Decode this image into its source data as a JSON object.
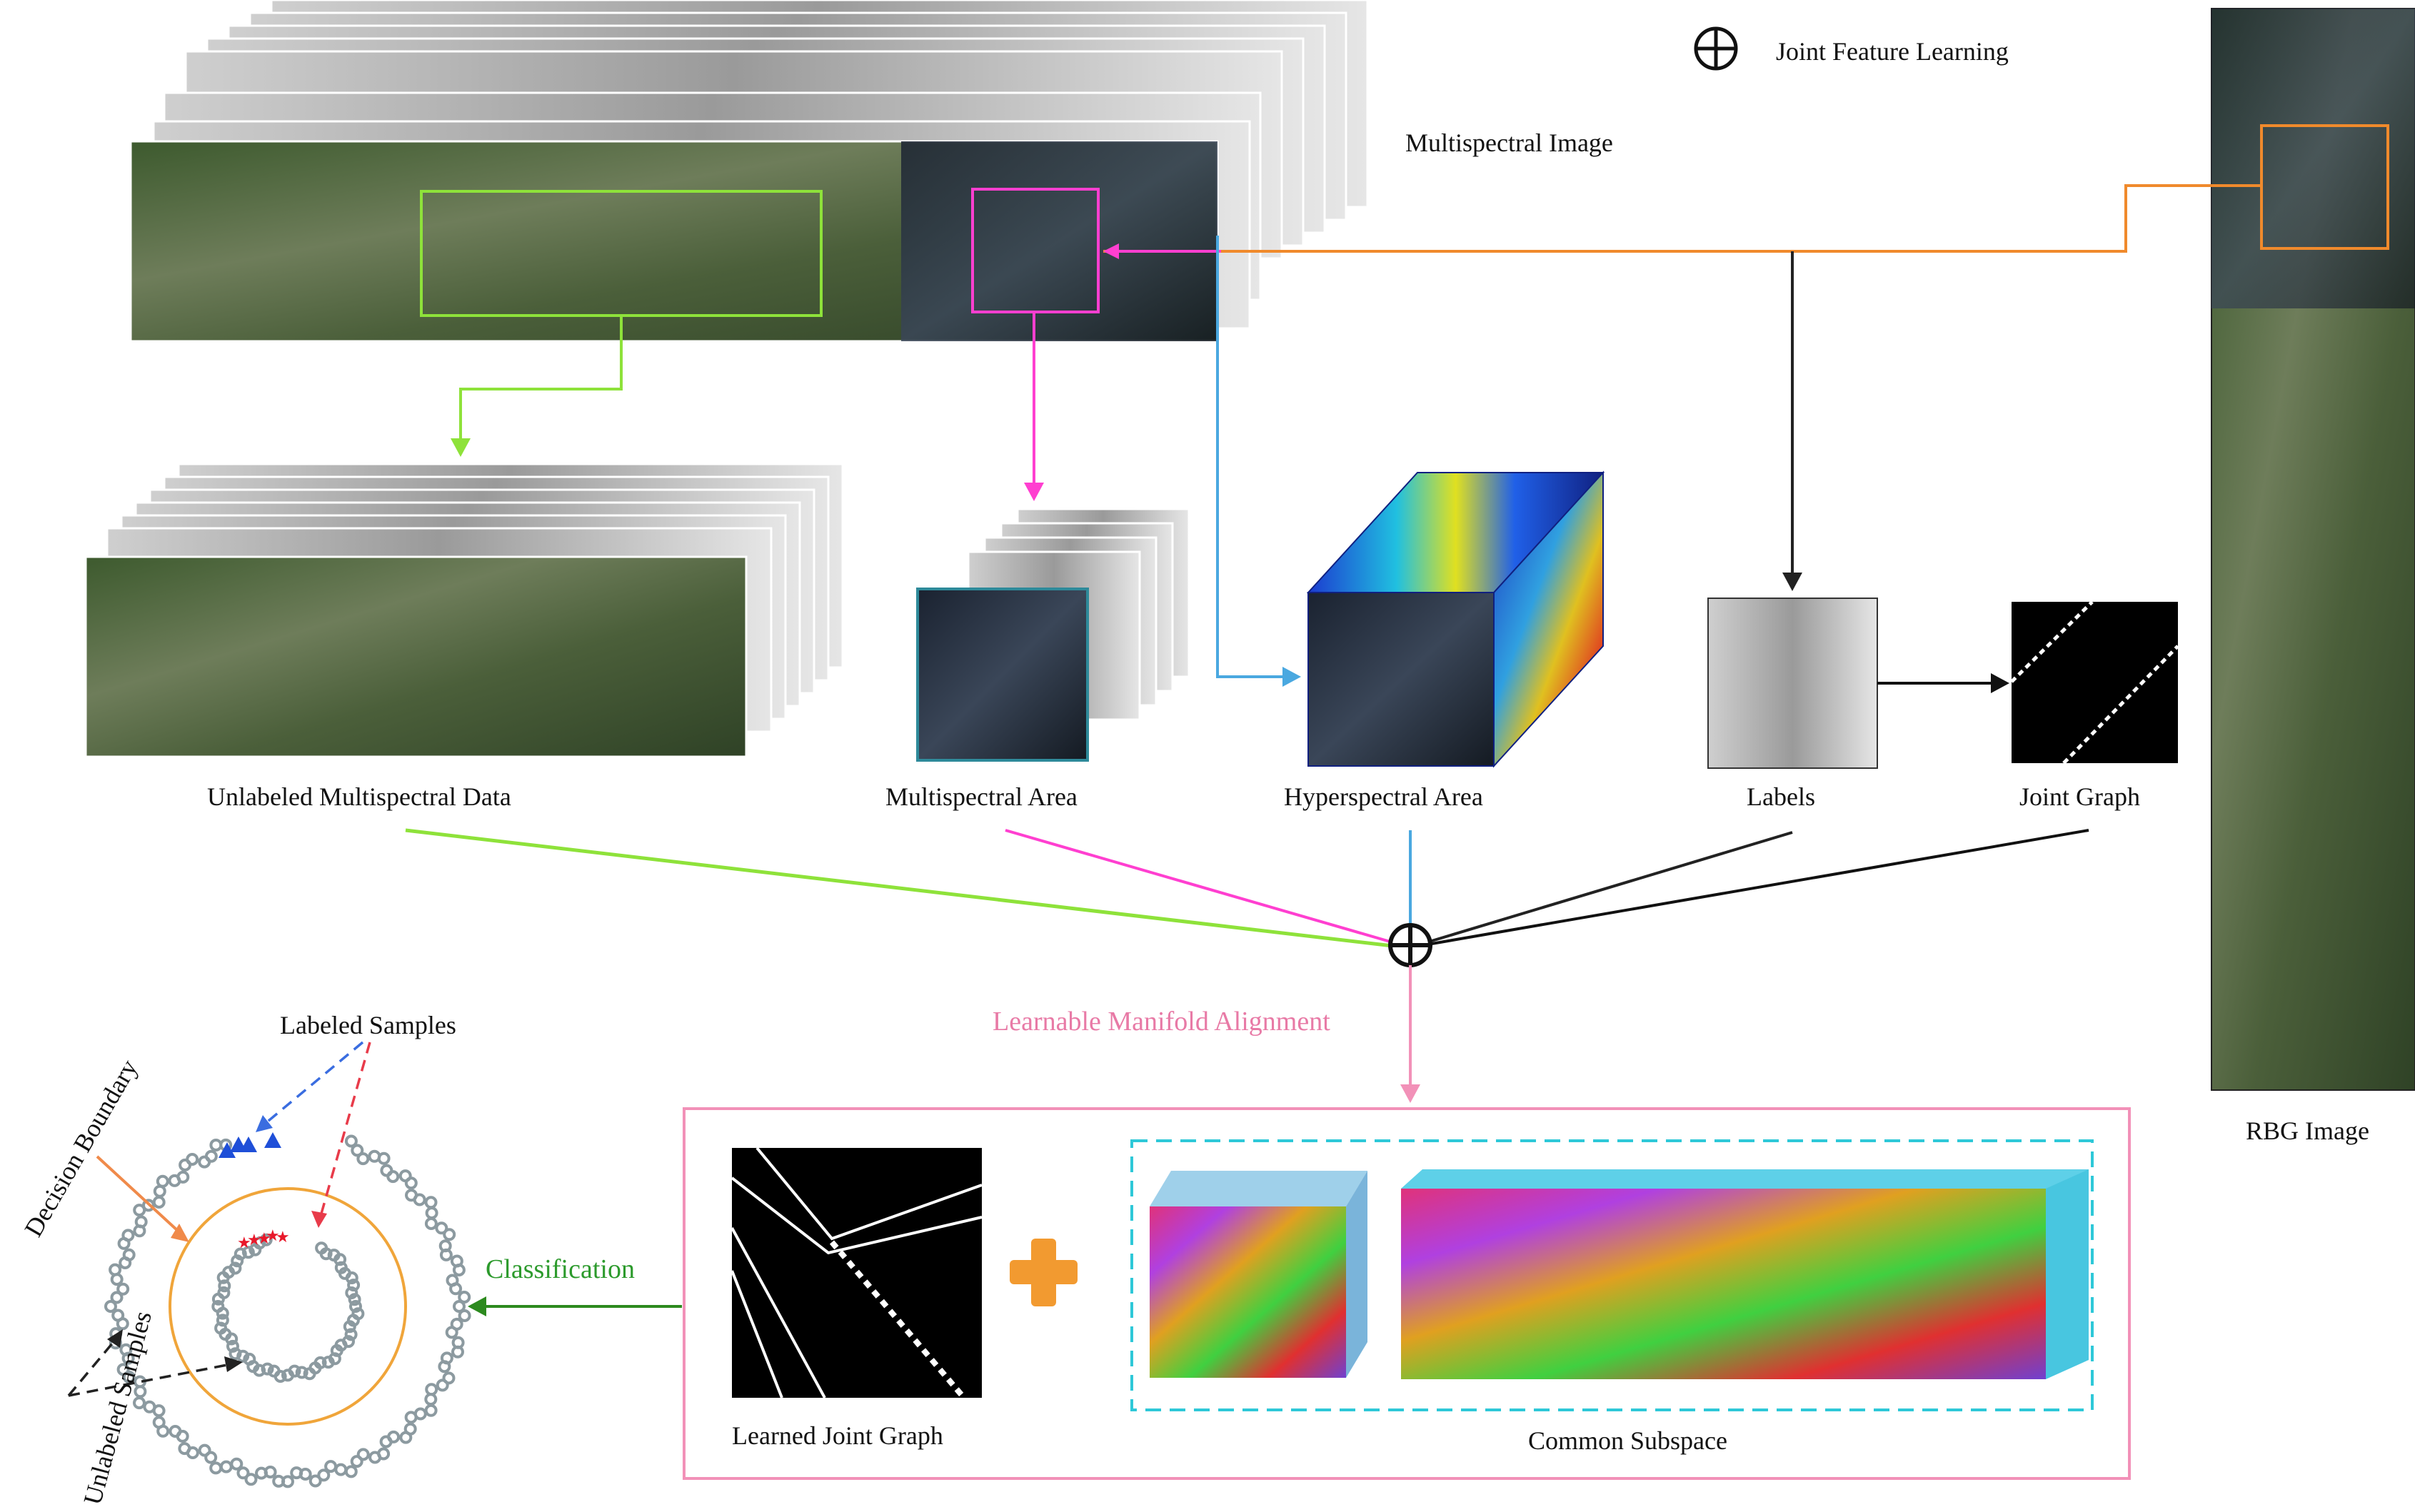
{
  "legend": {
    "text": "Joint Feature Learning"
  },
  "labels": {
    "multispectral_image": "Multispectral Image",
    "rgb_image": "RBG Image",
    "unlabeled_ms_data": "Unlabeled Multispectral Data",
    "ms_area": "Multispectral Area",
    "hs_area": "Hyperspectral Area",
    "labels": "Labels",
    "joint_graph": "Joint Graph",
    "lma": "Learnable Manifold Alignment",
    "learned_joint_graph": "Learned Joint Graph",
    "common_subspace": "Common Subspace",
    "classification": "Classification",
    "labeled_samples": "Labeled Samples",
    "decision_boundary": "Decision Boundary",
    "unlabeled_samples": "Unlabeled Samples"
  },
  "colors": {
    "green": "#8ee23a",
    "magenta": "#ff3fd0",
    "blue": "#4aa8e0",
    "orange": "#f08a2c",
    "pink": "#f291b8",
    "dark_green": "#2c8a1e",
    "cyan": "#2ec8d8",
    "sample_gray": "#8c9aa0",
    "label_blue": "#1f4fd8",
    "label_red": "#e8182a",
    "boundary_orange": "#f0a53a"
  }
}
